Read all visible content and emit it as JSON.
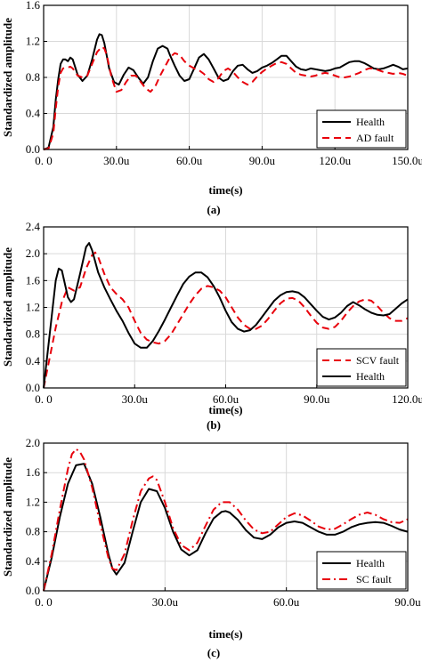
{
  "chart_data": [
    {
      "type": "line",
      "panel_label": "(a)",
      "xlabel": "time(s)",
      "ylabel": "Standardized amplitude",
      "xlim": [
        0,
        150
      ],
      "ylim": [
        0,
        1.6
      ],
      "xticks": [
        0,
        30,
        60,
        90,
        120,
        150
      ],
      "xtick_labels": [
        "0. 0",
        "30.0u",
        "60.0u",
        "90.0u",
        "120.0u",
        "150.0u"
      ],
      "yticks": [
        0,
        0.4,
        0.8,
        1.2,
        1.6
      ],
      "ytick_labels": [
        "0.0",
        "0.4",
        "0.8",
        "1.2",
        "1.6"
      ],
      "grid": true,
      "legend_position": "bottom-right",
      "series": [
        {
          "name": "Health",
          "style": "solid",
          "color": "#000000",
          "x": [
            0,
            2,
            4,
            5,
            6,
            7,
            8,
            9,
            10,
            11,
            12,
            14,
            16,
            18,
            20,
            22,
            23,
            24,
            25,
            27,
            29,
            31,
            33,
            35,
            37,
            39,
            41,
            43,
            45,
            47,
            49,
            51,
            52,
            54,
            56,
            58,
            60,
            62,
            64,
            66,
            68,
            70,
            72,
            74,
            76,
            78,
            80,
            82,
            84,
            86,
            88,
            90,
            92,
            94,
            96,
            98,
            100,
            102,
            104,
            106,
            108,
            110,
            112,
            114,
            116,
            118,
            120,
            122,
            124,
            126,
            128,
            130,
            132,
            134,
            136,
            138,
            140,
            142,
            144,
            146,
            148,
            150
          ],
          "values": [
            0,
            0.02,
            0.25,
            0.55,
            0.78,
            0.95,
            1.0,
            1.0,
            0.98,
            1.02,
            1.0,
            0.83,
            0.76,
            0.82,
            1.0,
            1.22,
            1.28,
            1.27,
            1.18,
            0.9,
            0.75,
            0.72,
            0.83,
            0.91,
            0.88,
            0.8,
            0.73,
            0.8,
            0.98,
            1.12,
            1.15,
            1.12,
            1.05,
            0.93,
            0.82,
            0.76,
            0.78,
            0.9,
            1.02,
            1.06,
            1.0,
            0.9,
            0.8,
            0.76,
            0.78,
            0.87,
            0.93,
            0.94,
            0.89,
            0.85,
            0.87,
            0.91,
            0.93,
            0.96,
            1.0,
            1.04,
            1.04,
            0.98,
            0.92,
            0.89,
            0.88,
            0.9,
            0.89,
            0.88,
            0.87,
            0.88,
            0.9,
            0.91,
            0.94,
            0.97,
            0.98,
            0.98,
            0.96,
            0.93,
            0.9,
            0.89,
            0.9,
            0.92,
            0.94,
            0.92,
            0.89,
            0.9
          ]
        },
        {
          "name": "AD fault",
          "style": "dashed",
          "color": "#e8000b",
          "x": [
            0,
            2,
            4,
            5,
            6,
            7,
            8,
            9,
            10,
            11,
            12,
            14,
            16,
            18,
            20,
            22,
            24,
            25,
            26,
            28,
            30,
            32,
            34,
            36,
            38,
            40,
            42,
            44,
            46,
            48,
            50,
            52,
            54,
            56,
            58,
            60,
            62,
            64,
            66,
            68,
            70,
            72,
            74,
            76,
            78,
            80,
            82,
            84,
            86,
            88,
            90,
            92,
            94,
            96,
            98,
            100,
            102,
            104,
            106,
            108,
            110,
            112,
            114,
            116,
            118,
            120,
            122,
            124,
            126,
            128,
            130,
            132,
            134,
            136,
            138,
            140,
            142,
            144,
            146,
            148,
            150
          ],
          "values": [
            0,
            0.01,
            0.18,
            0.45,
            0.7,
            0.85,
            0.9,
            0.91,
            0.91,
            0.92,
            0.9,
            0.82,
            0.8,
            0.82,
            0.95,
            1.08,
            1.14,
            1.12,
            1.05,
            0.8,
            0.64,
            0.66,
            0.75,
            0.82,
            0.82,
            0.75,
            0.68,
            0.64,
            0.7,
            0.82,
            0.92,
            1.02,
            1.07,
            1.05,
            0.98,
            0.93,
            0.9,
            0.88,
            0.84,
            0.78,
            0.75,
            0.79,
            0.87,
            0.9,
            0.86,
            0.8,
            0.75,
            0.72,
            0.75,
            0.81,
            0.86,
            0.9,
            0.93,
            0.96,
            0.97,
            0.95,
            0.9,
            0.85,
            0.83,
            0.82,
            0.81,
            0.82,
            0.84,
            0.85,
            0.84,
            0.82,
            0.8,
            0.8,
            0.81,
            0.83,
            0.85,
            0.88,
            0.9,
            0.9,
            0.88,
            0.86,
            0.85,
            0.84,
            0.85,
            0.84,
            0.82
          ]
        }
      ]
    },
    {
      "type": "line",
      "panel_label": "(b)",
      "xlabel": "time(s)",
      "ylabel": "Standardized amplitude",
      "xlim": [
        0,
        120
      ],
      "ylim": [
        0,
        2.4
      ],
      "xticks": [
        0,
        30,
        60,
        90,
        120
      ],
      "xtick_labels": [
        "0. 0",
        "30.0u",
        "60.0u",
        "90.0u",
        "120.0u"
      ],
      "yticks": [
        0,
        0.4,
        0.8,
        1.2,
        1.6,
        2.0,
        2.4
      ],
      "ytick_labels": [
        "0.0",
        "0.4",
        "0.8",
        "1.2",
        "1.6",
        "2.0",
        "2.4"
      ],
      "grid": true,
      "legend_position": "bottom-right",
      "series": [
        {
          "name": "SCV fault",
          "style": "dashed",
          "color": "#e8000b",
          "x": [
            0,
            2,
            4,
            6,
            8,
            10,
            12,
            14,
            16,
            17,
            18,
            20,
            22,
            24,
            26,
            28,
            30,
            32,
            34,
            36,
            38,
            40,
            42,
            44,
            46,
            48,
            50,
            52,
            54,
            56,
            58,
            60,
            62,
            64,
            66,
            68,
            70,
            72,
            74,
            76,
            78,
            80,
            82,
            84,
            86,
            88,
            90,
            92,
            94,
            96,
            98,
            100,
            102,
            104,
            106,
            108,
            110,
            112,
            114,
            116,
            118,
            120
          ],
          "values": [
            0,
            0.45,
            0.9,
            1.28,
            1.5,
            1.45,
            1.5,
            1.78,
            1.98,
            2.02,
            1.95,
            1.7,
            1.5,
            1.4,
            1.32,
            1.2,
            1.0,
            0.82,
            0.72,
            0.68,
            0.66,
            0.7,
            0.8,
            0.95,
            1.1,
            1.25,
            1.38,
            1.48,
            1.52,
            1.5,
            1.45,
            1.35,
            1.2,
            1.05,
            0.94,
            0.88,
            0.88,
            0.93,
            1.03,
            1.15,
            1.26,
            1.33,
            1.34,
            1.3,
            1.2,
            1.08,
            0.97,
            0.9,
            0.88,
            0.91,
            1.0,
            1.12,
            1.22,
            1.29,
            1.32,
            1.3,
            1.22,
            1.12,
            1.04,
            1.0,
            1.0,
            1.04
          ]
        },
        {
          "name": "Health",
          "style": "solid",
          "color": "#000000",
          "x": [
            0,
            2,
            4,
            5,
            6,
            7,
            8,
            9,
            10,
            12,
            14,
            15,
            16,
            18,
            20,
            22,
            24,
            26,
            28,
            30,
            32,
            34,
            36,
            38,
            40,
            42,
            44,
            46,
            48,
            50,
            52,
            54,
            56,
            58,
            60,
            62,
            64,
            66,
            68,
            70,
            72,
            74,
            76,
            78,
            80,
            82,
            84,
            86,
            88,
            90,
            92,
            94,
            96,
            98,
            100,
            102,
            104,
            106,
            108,
            110,
            112,
            114,
            116,
            118,
            120
          ],
          "values": [
            0,
            0.8,
            1.6,
            1.78,
            1.75,
            1.55,
            1.35,
            1.28,
            1.32,
            1.7,
            2.1,
            2.16,
            2.05,
            1.72,
            1.5,
            1.32,
            1.15,
            1.0,
            0.82,
            0.66,
            0.6,
            0.6,
            0.7,
            0.85,
            1.02,
            1.2,
            1.38,
            1.55,
            1.66,
            1.72,
            1.72,
            1.65,
            1.52,
            1.35,
            1.15,
            0.98,
            0.88,
            0.84,
            0.86,
            0.94,
            1.06,
            1.18,
            1.3,
            1.38,
            1.43,
            1.44,
            1.42,
            1.35,
            1.25,
            1.15,
            1.06,
            1.02,
            1.05,
            1.12,
            1.22,
            1.28,
            1.23,
            1.17,
            1.12,
            1.09,
            1.08,
            1.1,
            1.18,
            1.26,
            1.32
          ]
        }
      ]
    },
    {
      "type": "line",
      "panel_label": "(c)",
      "xlabel": "time(s)",
      "ylabel": "Standardized amplitude",
      "xlim": [
        0,
        90
      ],
      "ylim": [
        0,
        2.0
      ],
      "xticks": [
        0,
        30,
        60,
        90
      ],
      "xtick_labels": [
        "0. 0",
        "30.0u",
        "60.0u",
        "90.0u"
      ],
      "yticks": [
        0,
        0.4,
        0.8,
        1.2,
        1.6,
        2.0
      ],
      "ytick_labels": [
        "0.0",
        "0.4",
        "0.8",
        "1.2",
        "1.6",
        "2.0"
      ],
      "grid": true,
      "legend_position": "bottom-right",
      "series": [
        {
          "name": "Health",
          "style": "solid",
          "color": "#000000",
          "x": [
            0,
            2,
            4,
            6,
            8,
            10,
            12,
            14,
            16,
            17,
            18,
            20,
            22,
            24,
            26,
            28,
            30,
            32,
            34,
            36,
            38,
            40,
            42,
            44,
            45,
            46,
            48,
            50,
            52,
            54,
            56,
            58,
            60,
            62,
            64,
            66,
            68,
            70,
            72,
            74,
            76,
            78,
            80,
            82,
            84,
            86,
            88,
            90
          ],
          "values": [
            0,
            0.45,
            1.0,
            1.45,
            1.7,
            1.72,
            1.45,
            1.0,
            0.5,
            0.3,
            0.22,
            0.38,
            0.8,
            1.2,
            1.38,
            1.35,
            1.12,
            0.8,
            0.56,
            0.48,
            0.55,
            0.78,
            0.98,
            1.07,
            1.08,
            1.06,
            0.96,
            0.82,
            0.72,
            0.7,
            0.76,
            0.86,
            0.92,
            0.94,
            0.92,
            0.86,
            0.8,
            0.76,
            0.76,
            0.8,
            0.86,
            0.9,
            0.92,
            0.93,
            0.92,
            0.88,
            0.83,
            0.8
          ]
        },
        {
          "name": "SC fault",
          "style": "dashdot",
          "color": "#e8000b",
          "x": [
            0,
            2,
            4,
            6,
            7,
            8,
            9,
            10,
            12,
            14,
            16,
            17,
            18,
            20,
            22,
            24,
            26,
            27,
            28,
            30,
            32,
            34,
            36,
            38,
            40,
            42,
            44,
            46,
            48,
            50,
            52,
            54,
            56,
            58,
            60,
            62,
            64,
            66,
            68,
            70,
            72,
            74,
            76,
            78,
            80,
            82,
            84,
            86,
            88,
            90
          ],
          "values": [
            0,
            0.5,
            1.1,
            1.65,
            1.85,
            1.92,
            1.88,
            1.78,
            1.4,
            0.9,
            0.45,
            0.3,
            0.28,
            0.5,
            0.95,
            1.35,
            1.52,
            1.55,
            1.5,
            1.2,
            0.85,
            0.62,
            0.55,
            0.65,
            0.88,
            1.1,
            1.2,
            1.2,
            1.1,
            0.95,
            0.83,
            0.78,
            0.8,
            0.9,
            1.0,
            1.05,
            1.02,
            0.95,
            0.87,
            0.83,
            0.84,
            0.9,
            0.97,
            1.03,
            1.06,
            1.03,
            0.97,
            0.93,
            0.92,
            0.97
          ]
        }
      ]
    }
  ]
}
